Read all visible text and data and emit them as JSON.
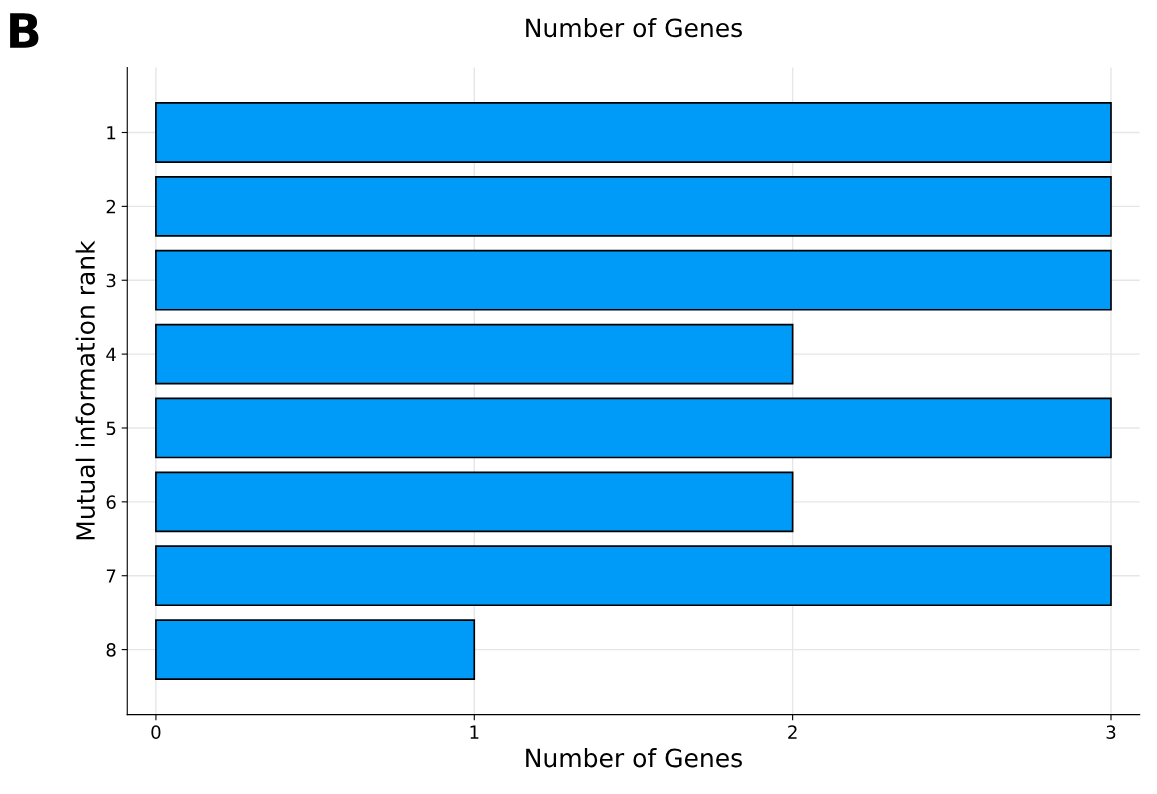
{
  "chart_data": {
    "type": "bar",
    "orientation": "horizontal",
    "title": "Number of Genes",
    "xlabel": "Number of Genes",
    "ylabel": "Mutual information rank",
    "categories": [
      "1",
      "2",
      "3",
      "4",
      "5",
      "6",
      "7",
      "8"
    ],
    "values": [
      3,
      3,
      3,
      2,
      3,
      2,
      3,
      1
    ],
    "color": "#009af9",
    "xlim": [
      -0.09,
      3.09
    ],
    "xticks": [
      0,
      1,
      2,
      3
    ],
    "grid": true,
    "annotations": [
      "B"
    ]
  }
}
